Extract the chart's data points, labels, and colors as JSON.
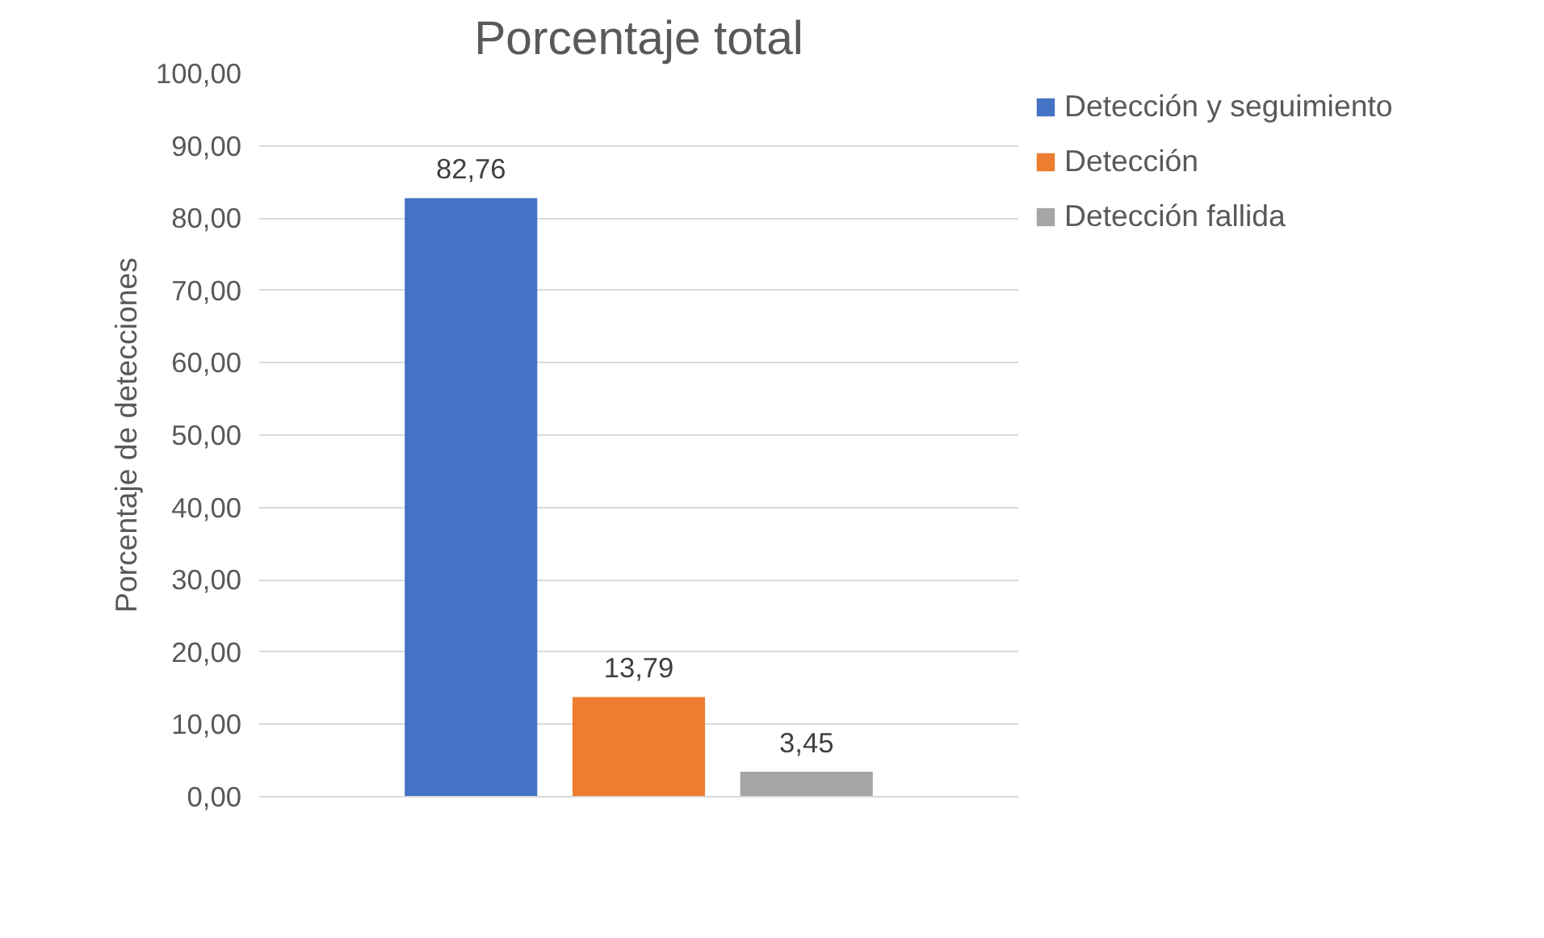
{
  "chart_data": {
    "type": "bar",
    "title": "Porcentaje total",
    "ylabel": "Porcentaje de detecciones",
    "categories": [
      null
    ],
    "series": [
      {
        "name": "Detección y seguimiento",
        "color": "#4472c4",
        "values": [
          82.76
        ],
        "value_labels": [
          "82,76"
        ]
      },
      {
        "name": "Detección",
        "color": "#ed7d31",
        "values": [
          13.79
        ],
        "value_labels": [
          "13,79"
        ]
      },
      {
        "name": "Detección fallida",
        "color": "#a5a5a5",
        "values": [
          3.45
        ],
        "value_labels": [
          "3,45"
        ]
      }
    ],
    "ylim": [
      0,
      100
    ],
    "yticks": [
      {
        "value": 0,
        "label": "0,00"
      },
      {
        "value": 10,
        "label": "10,00"
      },
      {
        "value": 20,
        "label": "20,00"
      },
      {
        "value": 30,
        "label": "30,00"
      },
      {
        "value": 40,
        "label": "40,00"
      },
      {
        "value": 50,
        "label": "50,00"
      },
      {
        "value": 60,
        "label": "60,00"
      },
      {
        "value": 70,
        "label": "70,00"
      },
      {
        "value": 80,
        "label": "80,00"
      },
      {
        "value": 90,
        "label": "90,00"
      },
      {
        "value": 100,
        "label": "100,00"
      }
    ],
    "grid": "y",
    "legend": "right"
  }
}
